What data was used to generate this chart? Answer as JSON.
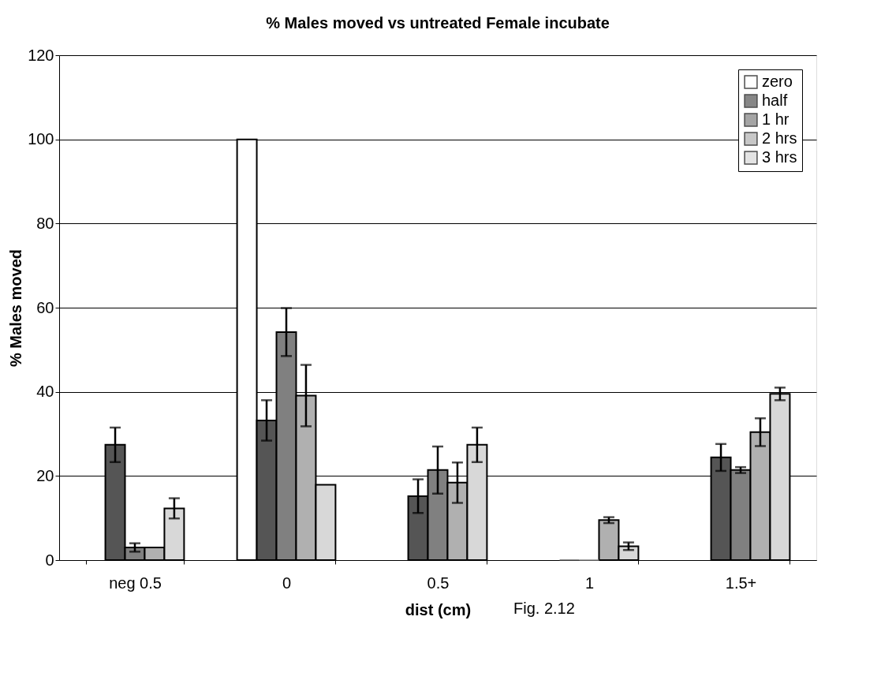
{
  "chart_data": {
    "type": "bar",
    "title": "% Males moved vs untreated Female incubate",
    "xlabel": "dist (cm)",
    "ylabel": "% Males moved",
    "categories": [
      "neg 0.5",
      "0",
      "0.5",
      "1",
      "1.5+"
    ],
    "series": [
      {
        "name": "zero",
        "color": "#ffffff",
        "values": [
          null,
          100,
          null,
          null,
          null
        ]
      },
      {
        "name": "half",
        "color": "#555555",
        "values": [
          27.4,
          33.2,
          15.2,
          0,
          24.4
        ],
        "errors": [
          4.1,
          4.8,
          4.0,
          null,
          3.2
        ]
      },
      {
        "name": "1 hr",
        "color": "#808080",
        "values": [
          3,
          54.2,
          21.4,
          0,
          21.4
        ],
        "errors": [
          1.0,
          5.7,
          5.6,
          null,
          0.7
        ]
      },
      {
        "name": "2 hrs",
        "color": "#b0b0b0",
        "values": [
          3,
          39.1,
          18.4,
          9.5,
          30.4
        ],
        "errors": [
          null,
          7.3,
          4.8,
          0.7,
          3.3
        ]
      },
      {
        "name": "3 hrs",
        "color": "#d8d8d8",
        "values": [
          12.3,
          17.9,
          27.4,
          3.3,
          39.5
        ],
        "errors": [
          2.4,
          null,
          4.1,
          0.9,
          1.5
        ]
      }
    ],
    "ylim": [
      0,
      120
    ],
    "yticks": [
      0,
      20,
      40,
      60,
      80,
      100,
      120
    ],
    "grid": "y",
    "legend": "top right",
    "annotations": [
      "Fig. 2.12"
    ]
  }
}
